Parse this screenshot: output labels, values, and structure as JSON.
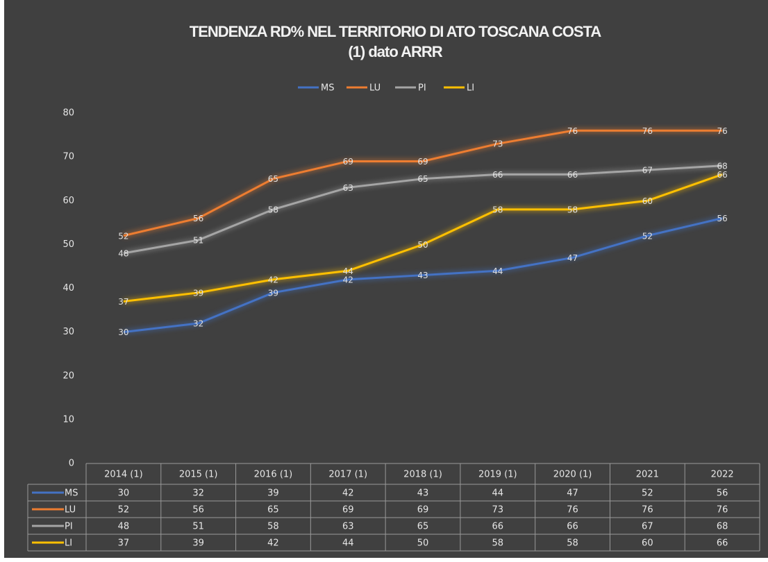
{
  "chart_data": {
    "type": "line",
    "title": "TENDENZA RD% NEL TERRITORIO DI ATO TOSCANA COSTA",
    "subtitle": "(1) dato ARRR",
    "categories": [
      "2014 (1)",
      "2015 (1)",
      "2016 (1)",
      "2017 (1)",
      "2018 (1)",
      "2019 (1)",
      "2020 (1)",
      "2021",
      "2022"
    ],
    "series": [
      {
        "name": "MS",
        "color": "#4472c4",
        "values": [
          30,
          32,
          39,
          42,
          43,
          44,
          47,
          52,
          56
        ]
      },
      {
        "name": "LU",
        "color": "#ed7d31",
        "values": [
          52,
          56,
          65,
          69,
          69,
          73,
          76,
          76,
          76
        ]
      },
      {
        "name": "PI",
        "color": "#a5a5a5",
        "values": [
          48,
          51,
          58,
          63,
          65,
          66,
          66,
          67,
          68
        ]
      },
      {
        "name": "LI",
        "color": "#ffc000",
        "values": [
          37,
          39,
          42,
          44,
          50,
          58,
          58,
          60,
          66
        ]
      }
    ],
    "ylim": [
      0,
      80
    ],
    "yticks": [
      0,
      10,
      20,
      30,
      40,
      50,
      60,
      70,
      80
    ],
    "legend": "top",
    "grid": false
  }
}
